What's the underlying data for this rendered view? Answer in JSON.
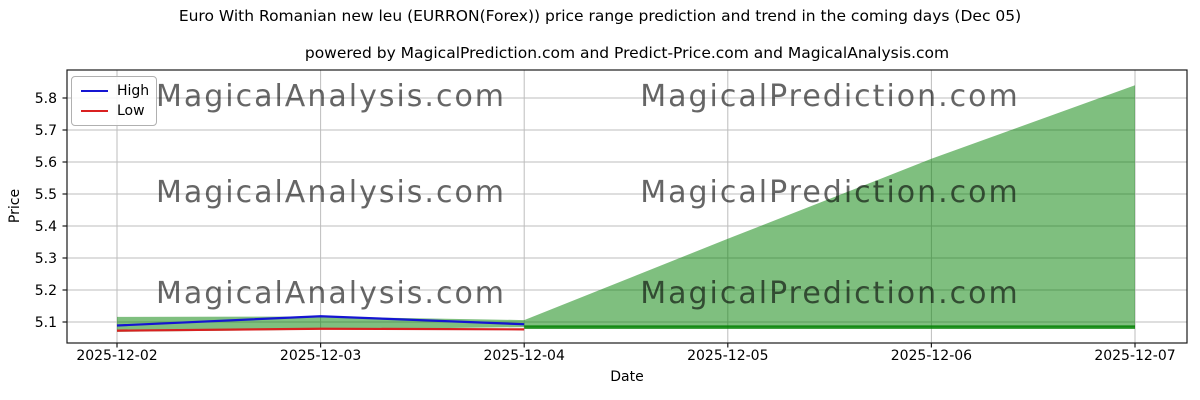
{
  "figure": {
    "title": "Euro With Romanian new leu (EURRON(Forex)) price range prediction and trend in the coming days (Dec 05)",
    "subtitle": "powered by MagicalPrediction.com and Predict-Price.com and MagicalAnalysis.com"
  },
  "chart_data": {
    "type": "area",
    "title": "Euro With Romanian new leu (EURRON(Forex)) price range prediction and trend in the coming days (Dec 05)",
    "subtitle": "powered by MagicalPrediction.com and Predict-Price.com and MagicalAnalysis.com",
    "xlabel": "Date",
    "ylabel": "Price",
    "x_categories": [
      "2025-12-02",
      "2025-12-03",
      "2025-12-04",
      "2025-12-05",
      "2025-12-06",
      "2025-12-07"
    ],
    "y_ticks": [
      "5.1",
      "5.2",
      "5.3",
      "5.4",
      "5.5",
      "5.6",
      "5.7",
      "5.8"
    ],
    "ylim": [
      5.034,
      5.888
    ],
    "grid": true,
    "grid_color": "#bdbdbd",
    "legend": {
      "position": "upper left",
      "entries": [
        {
          "label": "High",
          "color": "#1515d2"
        },
        {
          "label": "Low",
          "color": "#d92020"
        }
      ]
    },
    "series": [
      {
        "name": "high",
        "type": "line",
        "color": "#1515d2",
        "width": 2.2,
        "opacity": 1,
        "x": [
          0,
          1,
          2
        ],
        "values": [
          5.089,
          5.118,
          5.093
        ]
      },
      {
        "name": "low",
        "type": "line",
        "color": "#d92020",
        "width": 2.2,
        "opacity": 1,
        "x": [
          0,
          1,
          2
        ],
        "values": [
          5.073,
          5.079,
          5.077
        ]
      },
      {
        "name": "predicted-low",
        "type": "line",
        "color": "#008000",
        "width": 3.5,
        "opacity": 0.85,
        "x": [
          2,
          3,
          4,
          5
        ],
        "values": [
          5.084,
          5.084,
          5.084,
          5.084
        ]
      },
      {
        "name": "prediction-range",
        "type": "band",
        "color": "#008000",
        "opacity": 0.5,
        "x": [
          0,
          1,
          2,
          3,
          4,
          5
        ],
        "upper": [
          5.116,
          5.117,
          5.106,
          5.36,
          5.61,
          5.84
        ],
        "lower": [
          5.069,
          5.076,
          5.084,
          5.084,
          5.084,
          5.084
        ]
      }
    ],
    "watermarks": {
      "left_text": "MagicalAnalysis.com",
      "right_text": "MagicalPrediction.com",
      "color": "#cccccc",
      "rows": 3
    }
  }
}
